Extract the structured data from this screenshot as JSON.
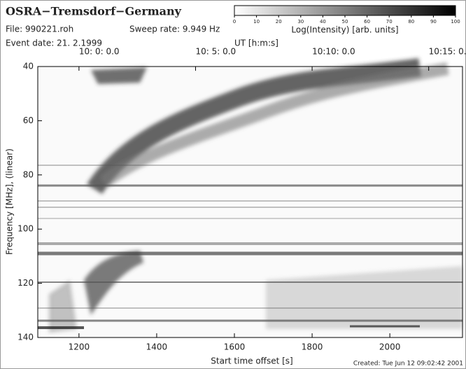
{
  "chart_data": {
    "type": "spectrogram",
    "title": "OSRA−Tremsdorf−Germany",
    "file": "File: 990221.roh",
    "sweep_rate": "Sweep rate: 9.949 Hz",
    "event_date": "Event date: 21. 2.1999",
    "colorbar_label": "Log(Intensity) [arb. units]",
    "colorbar_lim": [
      0,
      100
    ],
    "colorbar_ticks": [
      0,
      10,
      20,
      30,
      40,
      50,
      60,
      70,
      80,
      90,
      100
    ],
    "x2_label": "UT [h:m:s]",
    "x2ticks": [
      {
        "value": 1200,
        "label": "10: 0: 0.0"
      },
      {
        "value": 1500,
        "label": "10: 5: 0.0"
      },
      {
        "value": 1800,
        "label": "10:10: 0.0"
      },
      {
        "value": 2100,
        "label": "10:15: 0.0"
      }
    ],
    "xlabel": "Start time offset [s]",
    "ylabel": "Frequency [MHz], (linear)",
    "xlim": [
      1094,
      2187
    ],
    "xticks": [
      1200,
      1400,
      1600,
      1800,
      2000
    ],
    "ylim": [
      40,
      140
    ],
    "y_inverted": true,
    "yticks": [
      40,
      60,
      80,
      100,
      120,
      140
    ],
    "footer": "Created: Tue Jun 12 09:02:42 2001"
  }
}
